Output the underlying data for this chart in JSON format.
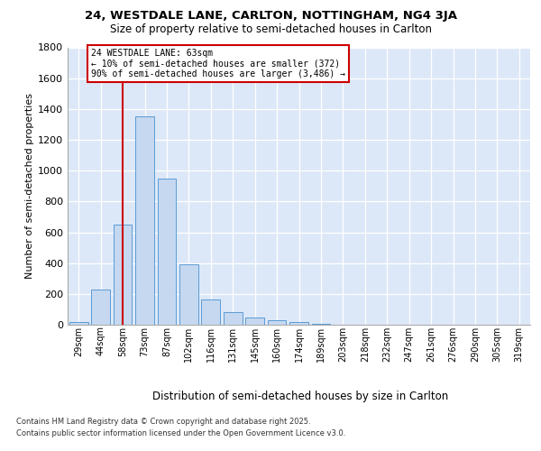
{
  "title_line1": "24, WESTDALE LANE, CARLTON, NOTTINGHAM, NG4 3JA",
  "title_line2": "Size of property relative to semi-detached houses in Carlton",
  "xlabel": "Distribution of semi-detached houses by size in Carlton",
  "ylabel": "Number of semi-detached properties",
  "categories": [
    "29sqm",
    "44sqm",
    "58sqm",
    "73sqm",
    "87sqm",
    "102sqm",
    "116sqm",
    "131sqm",
    "145sqm",
    "160sqm",
    "174sqm",
    "189sqm",
    "203sqm",
    "218sqm",
    "232sqm",
    "247sqm",
    "261sqm",
    "276sqm",
    "290sqm",
    "305sqm",
    "319sqm"
  ],
  "values": [
    20,
    230,
    650,
    1350,
    950,
    390,
    165,
    80,
    45,
    30,
    20,
    5,
    2,
    1,
    0,
    0,
    0,
    0,
    0,
    0,
    0
  ],
  "bar_color": "#c5d8f0",
  "bar_edge_color": "#5b9bd5",
  "vline_pos": 2.0,
  "vline_color": "#cc0000",
  "annotation_text": "24 WESTDALE LANE: 63sqm\n← 10% of semi-detached houses are smaller (372)\n90% of semi-detached houses are larger (3,486) →",
  "ylim": [
    0,
    1800
  ],
  "yticks": [
    0,
    200,
    400,
    600,
    800,
    1000,
    1200,
    1400,
    1600,
    1800
  ],
  "plot_bg": "#dce8f8",
  "footer_line1": "Contains HM Land Registry data © Crown copyright and database right 2025.",
  "footer_line2": "Contains public sector information licensed under the Open Government Licence v3.0."
}
